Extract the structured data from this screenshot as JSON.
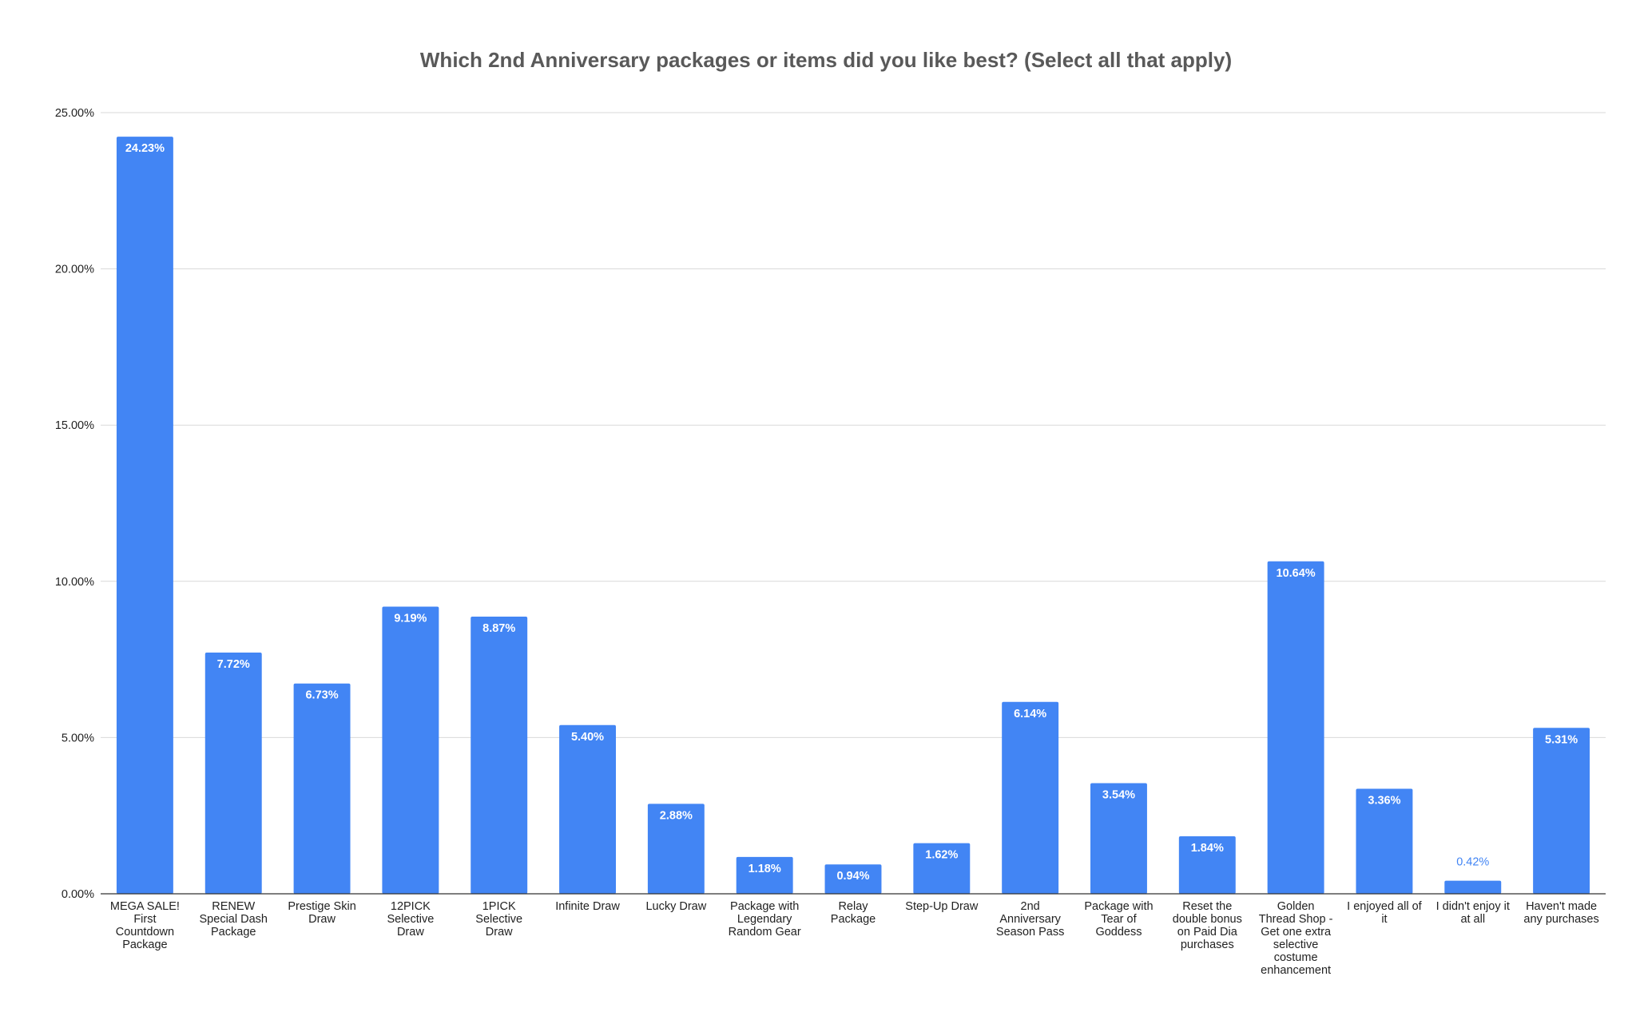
{
  "chart_data": {
    "type": "bar",
    "title": "Which 2nd Anniversary packages or items did you like best? (Select all that apply)",
    "xlabel": "",
    "ylabel": "",
    "ylim": [
      0,
      25
    ],
    "yticks": [
      "0.00%",
      "5.00%",
      "10.00%",
      "15.00%",
      "20.00%",
      "25.00%"
    ],
    "grid": true,
    "bar_color": "#4285f4",
    "categories": [
      [
        "MEGA SALE!",
        "First",
        "Countdown",
        "Package"
      ],
      [
        "RENEW",
        "Special Dash",
        "Package"
      ],
      [
        "Prestige Skin",
        "Draw"
      ],
      [
        "12PICK",
        "Selective",
        "Draw"
      ],
      [
        "1PICK",
        "Selective",
        "Draw"
      ],
      [
        "Infinite Draw"
      ],
      [
        "Lucky Draw"
      ],
      [
        "Package with",
        "Legendary",
        "Random Gear"
      ],
      [
        "Relay",
        "Package"
      ],
      [
        "Step-Up Draw"
      ],
      [
        "2nd",
        "Anniversary",
        "Season Pass"
      ],
      [
        "Package with",
        "Tear of",
        "Goddess"
      ],
      [
        "Reset the",
        "double bonus",
        "on Paid Dia",
        "purchases"
      ],
      [
        "Golden",
        "Thread Shop -",
        "Get one extra",
        "selective",
        "costume",
        "enhancement"
      ],
      [
        "I enjoyed all of",
        "it"
      ],
      [
        "I didn't enjoy it",
        "at all"
      ],
      [
        "Haven't made",
        "any purchases"
      ]
    ],
    "values": [
      24.23,
      7.72,
      6.73,
      9.19,
      8.87,
      5.4,
      2.88,
      1.18,
      0.94,
      1.62,
      6.14,
      3.54,
      1.84,
      10.64,
      3.36,
      0.42,
      5.31
    ],
    "data_labels": [
      "24.23%",
      "7.72%",
      "6.73%",
      "9.19%",
      "8.87%",
      "5.40%",
      "2.88%",
      "1.18%",
      "0.94%",
      "1.62%",
      "6.14%",
      "3.54%",
      "1.84%",
      "10.64%",
      "3.36%",
      "0.42%",
      "5.31%"
    ]
  }
}
